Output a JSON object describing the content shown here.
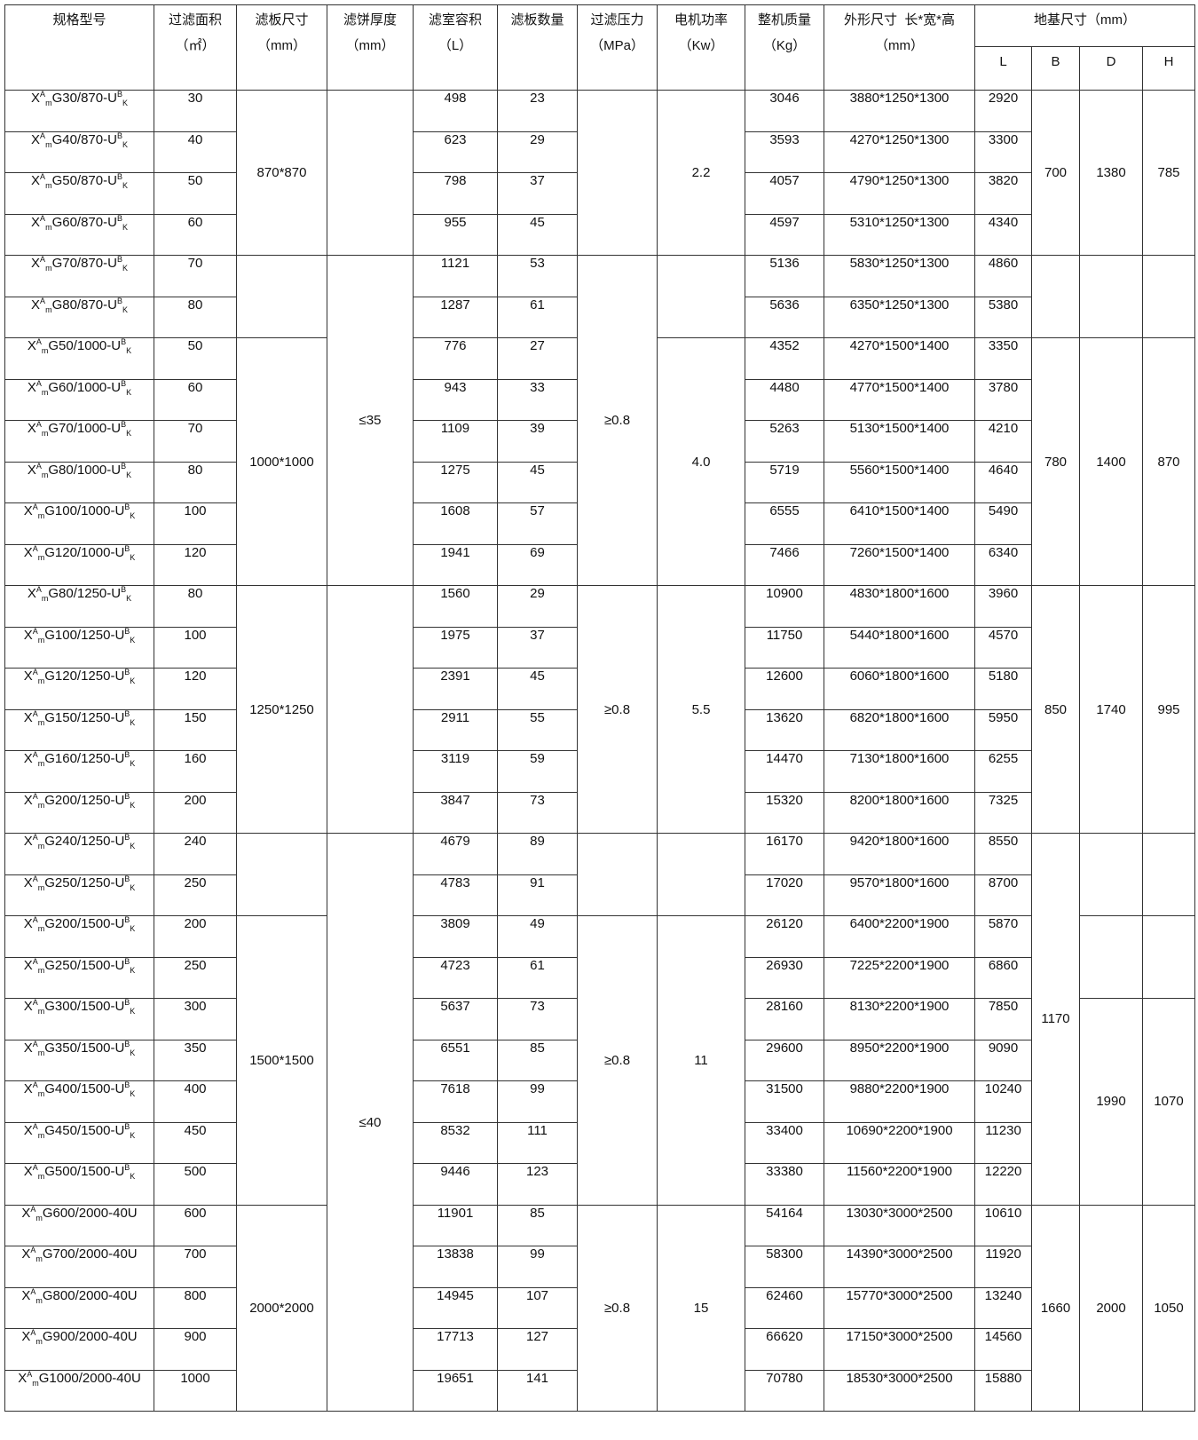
{
  "header": {
    "model": [
      "规格型号"
    ],
    "area": [
      "过滤面积",
      "（㎡）"
    ],
    "plate_size": [
      "滤板尺寸",
      "（mm）"
    ],
    "cake_thickness": [
      "滤饼厚度",
      "（mm）"
    ],
    "chamber_volume": [
      "滤室容积",
      "（L）"
    ],
    "plate_count": [
      "滤板数量"
    ],
    "pressure": [
      "过滤压力",
      "（MPa）"
    ],
    "motor_power": [
      "电机功率",
      "（Kw）"
    ],
    "weight": [
      "整机质量",
      "（Kg）"
    ],
    "dimensions": [
      "外形尺寸  长*宽*高",
      "（mm）"
    ],
    "foundation": "地基尺寸（mm）",
    "foundation_sub": [
      "L",
      "B",
      "D",
      "H"
    ]
  },
  "rows": [
    {
      "model": {
        "body": "G30/870-U",
        "sup2": "B",
        "sub2": "K"
      },
      "area": "30",
      "volume": "498",
      "plates": "23",
      "weight": "3046",
      "dims": "3880*1250*1300",
      "L": "2920"
    },
    {
      "model": {
        "body": "G40/870-U",
        "sup2": "B",
        "sub2": "K"
      },
      "area": "40",
      "volume": "623",
      "plates": "29",
      "weight": "3593",
      "dims": "4270*1250*1300",
      "L": "3300"
    },
    {
      "model": {
        "body": "G50/870-U",
        "sup2": "B",
        "sub2": "K"
      },
      "area": "50",
      "volume": "798",
      "plates": "37",
      "weight": "4057",
      "dims": "4790*1250*1300",
      "L": "3820"
    },
    {
      "model": {
        "body": "G60/870-U",
        "sup2": "B",
        "sub2": "K"
      },
      "area": "60",
      "volume": "955",
      "plates": "45",
      "weight": "4597",
      "dims": "5310*1250*1300",
      "L": "4340"
    },
    {
      "model": {
        "body": "G70/870-U",
        "sup2": "B",
        "sub2": "K"
      },
      "area": "70",
      "volume": "1121",
      "plates": "53",
      "weight": "5136",
      "dims": "5830*1250*1300",
      "L": "4860"
    },
    {
      "model": {
        "body": "G80/870-U",
        "sup2": "B",
        "sub2": "K"
      },
      "area": "80",
      "volume": "1287",
      "plates": "61",
      "weight": "5636",
      "dims": "6350*1250*1300",
      "L": "5380"
    },
    {
      "model": {
        "body": "G50/1000-U",
        "sup2": "B",
        "sub2": "K"
      },
      "area": "50",
      "volume": "776",
      "plates": "27",
      "weight": "4352",
      "dims": "4270*1500*1400",
      "L": "3350"
    },
    {
      "model": {
        "body": "G60/1000-U",
        "sup2": "B",
        "sub2": "K"
      },
      "area": "60",
      "volume": "943",
      "plates": "33",
      "weight": "4480",
      "dims": "4770*1500*1400",
      "L": "3780"
    },
    {
      "model": {
        "body": "G70/1000-U",
        "sup2": "B",
        "sub2": "K"
      },
      "area": "70",
      "volume": "1109",
      "plates": "39",
      "weight": "5263",
      "dims": "5130*1500*1400",
      "L": "4210"
    },
    {
      "model": {
        "body": "G80/1000-U",
        "sup2": "B",
        "sub2": "K"
      },
      "area": "80",
      "volume": "1275",
      "plates": "45",
      "weight": "5719",
      "dims": "5560*1500*1400",
      "L": "4640"
    },
    {
      "model": {
        "body": "G100/1000-U",
        "sup2": "B",
        "sub2": "K"
      },
      "area": "100",
      "volume": "1608",
      "plates": "57",
      "weight": "6555",
      "dims": "6410*1500*1400",
      "L": "5490"
    },
    {
      "model": {
        "body": "G120/1000-U",
        "sup2": "B",
        "sub2": "K"
      },
      "area": "120",
      "volume": "1941",
      "plates": "69",
      "weight": "7466",
      "dims": "7260*1500*1400",
      "L": "6340"
    },
    {
      "model": {
        "body": "G80/1250-U",
        "sup2": "B",
        "sub2": "K"
      },
      "area": "80",
      "volume": "1560",
      "plates": "29",
      "weight": "10900",
      "dims": "4830*1800*1600",
      "L": "3960"
    },
    {
      "model": {
        "body": "G100/1250-U",
        "sup2": "B",
        "sub2": "K"
      },
      "area": "100",
      "volume": "1975",
      "plates": "37",
      "weight": "11750",
      "dims": "5440*1800*1600",
      "L": "4570"
    },
    {
      "model": {
        "body": "G120/1250-U",
        "sup2": "B",
        "sub2": "K"
      },
      "area": "120",
      "volume": "2391",
      "plates": "45",
      "weight": "12600",
      "dims": "6060*1800*1600",
      "L": "5180"
    },
    {
      "model": {
        "body": "G150/1250-U",
        "sup2": "B",
        "sub2": "K"
      },
      "area": "150",
      "volume": "2911",
      "plates": "55",
      "weight": "13620",
      "dims": "6820*1800*1600",
      "L": "5950"
    },
    {
      "model": {
        "body": "G160/1250-U",
        "sup2": "B",
        "sub2": "K"
      },
      "area": "160",
      "volume": "3119",
      "plates": "59",
      "weight": "14470",
      "dims": "7130*1800*1600",
      "L": "6255"
    },
    {
      "model": {
        "body": "G200/1250-U",
        "sup2": "B",
        "sub2": "K"
      },
      "area": "200",
      "volume": "3847",
      "plates": "73",
      "weight": "15320",
      "dims": "8200*1800*1600",
      "L": "7325"
    },
    {
      "model": {
        "body": "G240/1250-U",
        "sup2": "B",
        "sub2": "K"
      },
      "area": "240",
      "volume": "4679",
      "plates": "89",
      "weight": "16170",
      "dims": "9420*1800*1600",
      "L": "8550"
    },
    {
      "model": {
        "body": "G250/1250-U",
        "sup2": "B",
        "sub2": "K"
      },
      "area": "250",
      "volume": "4783",
      "plates": "91",
      "weight": "17020",
      "dims": "9570*1800*1600",
      "L": "8700"
    },
    {
      "model": {
        "body": "G200/1500-U",
        "sup2": "B",
        "sub2": "K"
      },
      "area": "200",
      "volume": "3809",
      "plates": "49",
      "weight": "26120",
      "dims": "6400*2200*1900",
      "L": "5870"
    },
    {
      "model": {
        "body": "G250/1500-U",
        "sup2": "B",
        "sub2": "K"
      },
      "area": "250",
      "volume": "4723",
      "plates": "61",
      "weight": "26930",
      "dims": "7225*2200*1900",
      "L": "6860"
    },
    {
      "model": {
        "body": "G300/1500-U",
        "sup2": "B",
        "sub2": "K"
      },
      "area": "300",
      "volume": "5637",
      "plates": "73",
      "weight": "28160",
      "dims": "8130*2200*1900",
      "L": "7850"
    },
    {
      "model": {
        "body": "G350/1500-U",
        "sup2": "B",
        "sub2": "K"
      },
      "area": "350",
      "volume": "6551",
      "plates": "85",
      "weight": "29600",
      "dims": "8950*2200*1900",
      "L": "9090"
    },
    {
      "model": {
        "body": "G400/1500-U",
        "sup2": "B",
        "sub2": "K"
      },
      "area": "400",
      "volume": "7618",
      "plates": "99",
      "weight": "31500",
      "dims": "9880*2200*1900",
      "L": "10240"
    },
    {
      "model": {
        "body": "G450/1500-U",
        "sup2": "B",
        "sub2": "K"
      },
      "area": "450",
      "volume": "8532",
      "plates": "111",
      "weight": "33400",
      "dims": "10690*2200*1900",
      "L": "11230"
    },
    {
      "model": {
        "body": "G500/1500-U",
        "sup2": "B",
        "sub2": "K"
      },
      "area": "500",
      "volume": "9446",
      "plates": "123",
      "weight": "33380",
      "dims": "11560*2200*1900",
      "L": "12220"
    },
    {
      "model": {
        "body": "G600/2000-40U"
      },
      "area": "600",
      "volume": "11901",
      "plates": "85",
      "weight": "54164",
      "dims": "13030*3000*2500",
      "L": "10610"
    },
    {
      "model": {
        "body": "G700/2000-40U"
      },
      "area": "700",
      "volume": "13838",
      "plates": "99",
      "weight": "58300",
      "dims": "14390*3000*2500",
      "L": "11920"
    },
    {
      "model": {
        "body": "G800/2000-40U"
      },
      "area": "800",
      "volume": "14945",
      "plates": "107",
      "weight": "62460",
      "dims": "15770*3000*2500",
      "L": "13240"
    },
    {
      "model": {
        "body": "G900/2000-40U"
      },
      "area": "900",
      "volume": "17713",
      "plates": "127",
      "weight": "66620",
      "dims": "17150*3000*2500",
      "L": "14560"
    },
    {
      "model": {
        "body": "G1000/2000-40U"
      },
      "area": "1000",
      "volume": "19651",
      "plates": "141",
      "weight": "70780",
      "dims": "18530*3000*2500",
      "L": "15880"
    }
  ],
  "model_prefix": {
    "base": "X",
    "sup": "A",
    "sub": "m"
  },
  "merged": {
    "plate_size": [
      {
        "rows": [
          1,
          4
        ],
        "value": "870*870"
      },
      {
        "rows": [
          5,
          6
        ],
        "value": ""
      },
      {
        "rows": [
          7,
          12
        ],
        "value": "1000*1000"
      },
      {
        "rows": [
          13,
          18
        ],
        "value": "1250*1250"
      },
      {
        "rows": [
          19,
          20
        ],
        "value": ""
      },
      {
        "rows": [
          21,
          27
        ],
        "value": "1500*1500"
      },
      {
        "rows": [
          28,
          32
        ],
        "value": "2000*2000"
      }
    ],
    "cake_thickness": [
      {
        "rows": [
          1,
          4
        ],
        "value": ""
      },
      {
        "rows": [
          5,
          12
        ],
        "value": "≤35"
      },
      {
        "rows": [
          13,
          18
        ],
        "value": ""
      },
      {
        "rows": [
          19,
          32
        ],
        "value": "≤40"
      }
    ],
    "pressure": [
      {
        "rows": [
          1,
          4
        ],
        "value": ""
      },
      {
        "rows": [
          5,
          12
        ],
        "value": "≥0.8"
      },
      {
        "rows": [
          13,
          18
        ],
        "value": "≥0.8"
      },
      {
        "rows": [
          19,
          20
        ],
        "value": ""
      },
      {
        "rows": [
          21,
          27
        ],
        "value": "≥0.8"
      },
      {
        "rows": [
          28,
          32
        ],
        "value": "≥0.8"
      }
    ],
    "motor_power": [
      {
        "rows": [
          1,
          4
        ],
        "value": "2.2"
      },
      {
        "rows": [
          5,
          6
        ],
        "value": ""
      },
      {
        "rows": [
          7,
          12
        ],
        "value": "4.0"
      },
      {
        "rows": [
          13,
          18
        ],
        "value": "5.5"
      },
      {
        "rows": [
          19,
          20
        ],
        "value": ""
      },
      {
        "rows": [
          21,
          27
        ],
        "value": "11"
      },
      {
        "rows": [
          28,
          32
        ],
        "value": "15"
      }
    ],
    "B": [
      {
        "rows": [
          1,
          4
        ],
        "value": "700"
      },
      {
        "rows": [
          5,
          6
        ],
        "value": ""
      },
      {
        "rows": [
          7,
          12
        ],
        "value": "780"
      },
      {
        "rows": [
          13,
          18
        ],
        "value": "850"
      },
      {
        "rows": [
          19,
          27
        ],
        "value": "1170"
      },
      {
        "rows": [
          28,
          32
        ],
        "value": "1660"
      }
    ],
    "D": [
      {
        "rows": [
          1,
          4
        ],
        "value": "1380"
      },
      {
        "rows": [
          5,
          6
        ],
        "value": ""
      },
      {
        "rows": [
          7,
          12
        ],
        "value": "1400"
      },
      {
        "rows": [
          13,
          18
        ],
        "value": "1740"
      },
      {
        "rows": [
          19,
          20
        ],
        "value": ""
      },
      {
        "rows": [
          21,
          22
        ],
        "value": ""
      },
      {
        "rows": [
          23,
          27
        ],
        "value": "1990"
      },
      {
        "rows": [
          28,
          32
        ],
        "value": "2000"
      }
    ],
    "H": [
      {
        "rows": [
          1,
          4
        ],
        "value": "785"
      },
      {
        "rows": [
          5,
          6
        ],
        "value": ""
      },
      {
        "rows": [
          7,
          12
        ],
        "value": "870"
      },
      {
        "rows": [
          13,
          18
        ],
        "value": "995"
      },
      {
        "rows": [
          19,
          20
        ],
        "value": ""
      },
      {
        "rows": [
          21,
          22
        ],
        "value": ""
      },
      {
        "rows": [
          23,
          27
        ],
        "value": "1070"
      },
      {
        "rows": [
          28,
          32
        ],
        "value": "1050"
      }
    ]
  }
}
